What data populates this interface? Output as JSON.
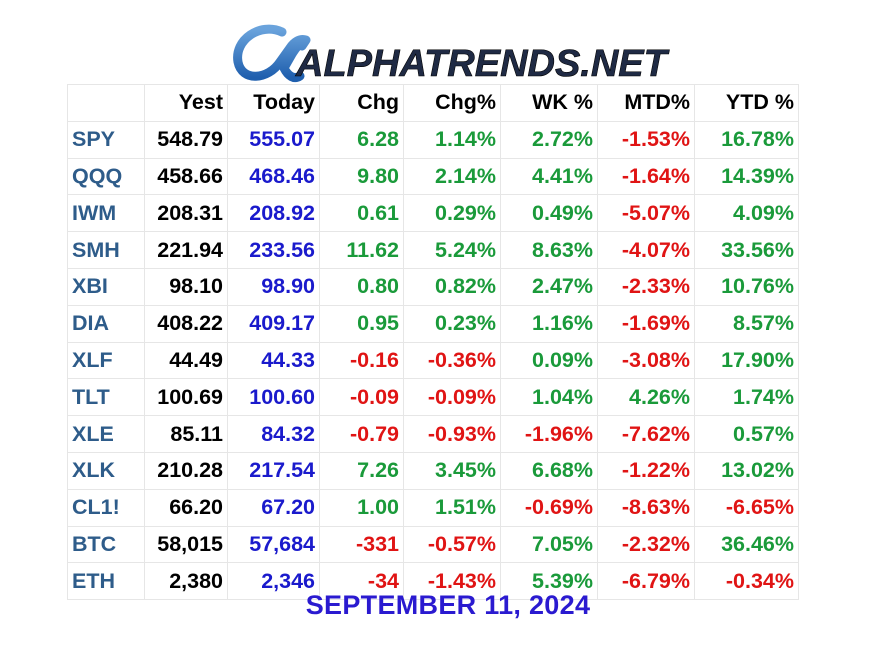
{
  "brand": {
    "logo_text": "ALPHATRENDS.NET",
    "logo_glyph": "α"
  },
  "colors": {
    "symbol": "#2e5c8a",
    "today": "#1a1acc",
    "positive": "#1a9a3a",
    "negative": "#e01414",
    "footer": "#2a1ad0"
  },
  "table": {
    "headers": [
      "",
      "Yest",
      "Today",
      "Chg",
      "Chg%",
      "WK %",
      "MTD%",
      "YTD %"
    ],
    "rows": [
      {
        "sym": "SPY",
        "yest": "548.79",
        "today": "555.07",
        "chg": "6.28",
        "chgp": "1.14%",
        "wk": "2.72%",
        "mtd": "-1.53%",
        "ytd": "16.78%"
      },
      {
        "sym": "QQQ",
        "yest": "458.66",
        "today": "468.46",
        "chg": "9.80",
        "chgp": "2.14%",
        "wk": "4.41%",
        "mtd": "-1.64%",
        "ytd": "14.39%"
      },
      {
        "sym": "IWM",
        "yest": "208.31",
        "today": "208.92",
        "chg": "0.61",
        "chgp": "0.29%",
        "wk": "0.49%",
        "mtd": "-5.07%",
        "ytd": "4.09%"
      },
      {
        "sym": "SMH",
        "yest": "221.94",
        "today": "233.56",
        "chg": "11.62",
        "chgp": "5.24%",
        "wk": "8.63%",
        "mtd": "-4.07%",
        "ytd": "33.56%"
      },
      {
        "sym": "XBI",
        "yest": "98.10",
        "today": "98.90",
        "chg": "0.80",
        "chgp": "0.82%",
        "wk": "2.47%",
        "mtd": "-2.33%",
        "ytd": "10.76%"
      },
      {
        "sym": "DIA",
        "yest": "408.22",
        "today": "409.17",
        "chg": "0.95",
        "chgp": "0.23%",
        "wk": "1.16%",
        "mtd": "-1.69%",
        "ytd": "8.57%"
      },
      {
        "sym": "XLF",
        "yest": "44.49",
        "today": "44.33",
        "chg": "-0.16",
        "chgp": "-0.36%",
        "wk": "0.09%",
        "mtd": "-3.08%",
        "ytd": "17.90%"
      },
      {
        "sym": "TLT",
        "yest": "100.69",
        "today": "100.60",
        "chg": "-0.09",
        "chgp": "-0.09%",
        "wk": "1.04%",
        "mtd": "4.26%",
        "ytd": "1.74%"
      },
      {
        "sym": "XLE",
        "yest": "85.11",
        "today": "84.32",
        "chg": "-0.79",
        "chgp": "-0.93%",
        "wk": "-1.96%",
        "mtd": "-7.62%",
        "ytd": "0.57%"
      },
      {
        "sym": "XLK",
        "yest": "210.28",
        "today": "217.54",
        "chg": "7.26",
        "chgp": "3.45%",
        "wk": "6.68%",
        "mtd": "-1.22%",
        "ytd": "13.02%"
      },
      {
        "sym": "CL1!",
        "yest": "66.20",
        "today": "67.20",
        "chg": "1.00",
        "chgp": "1.51%",
        "wk": "-0.69%",
        "mtd": "-8.63%",
        "ytd": "-6.65%"
      },
      {
        "sym": "BTC",
        "yest": "58,015",
        "today": "57,684",
        "chg": "-331",
        "chgp": "-0.57%",
        "wk": "7.05%",
        "mtd": "-2.32%",
        "ytd": "36.46%"
      },
      {
        "sym": "ETH",
        "yest": "2,380",
        "today": "2,346",
        "chg": "-34",
        "chgp": "-1.43%",
        "wk": "5.39%",
        "mtd": "-6.79%",
        "ytd": "-0.34%"
      }
    ]
  },
  "footer": {
    "date": "SEPTEMBER 11, 2024"
  }
}
